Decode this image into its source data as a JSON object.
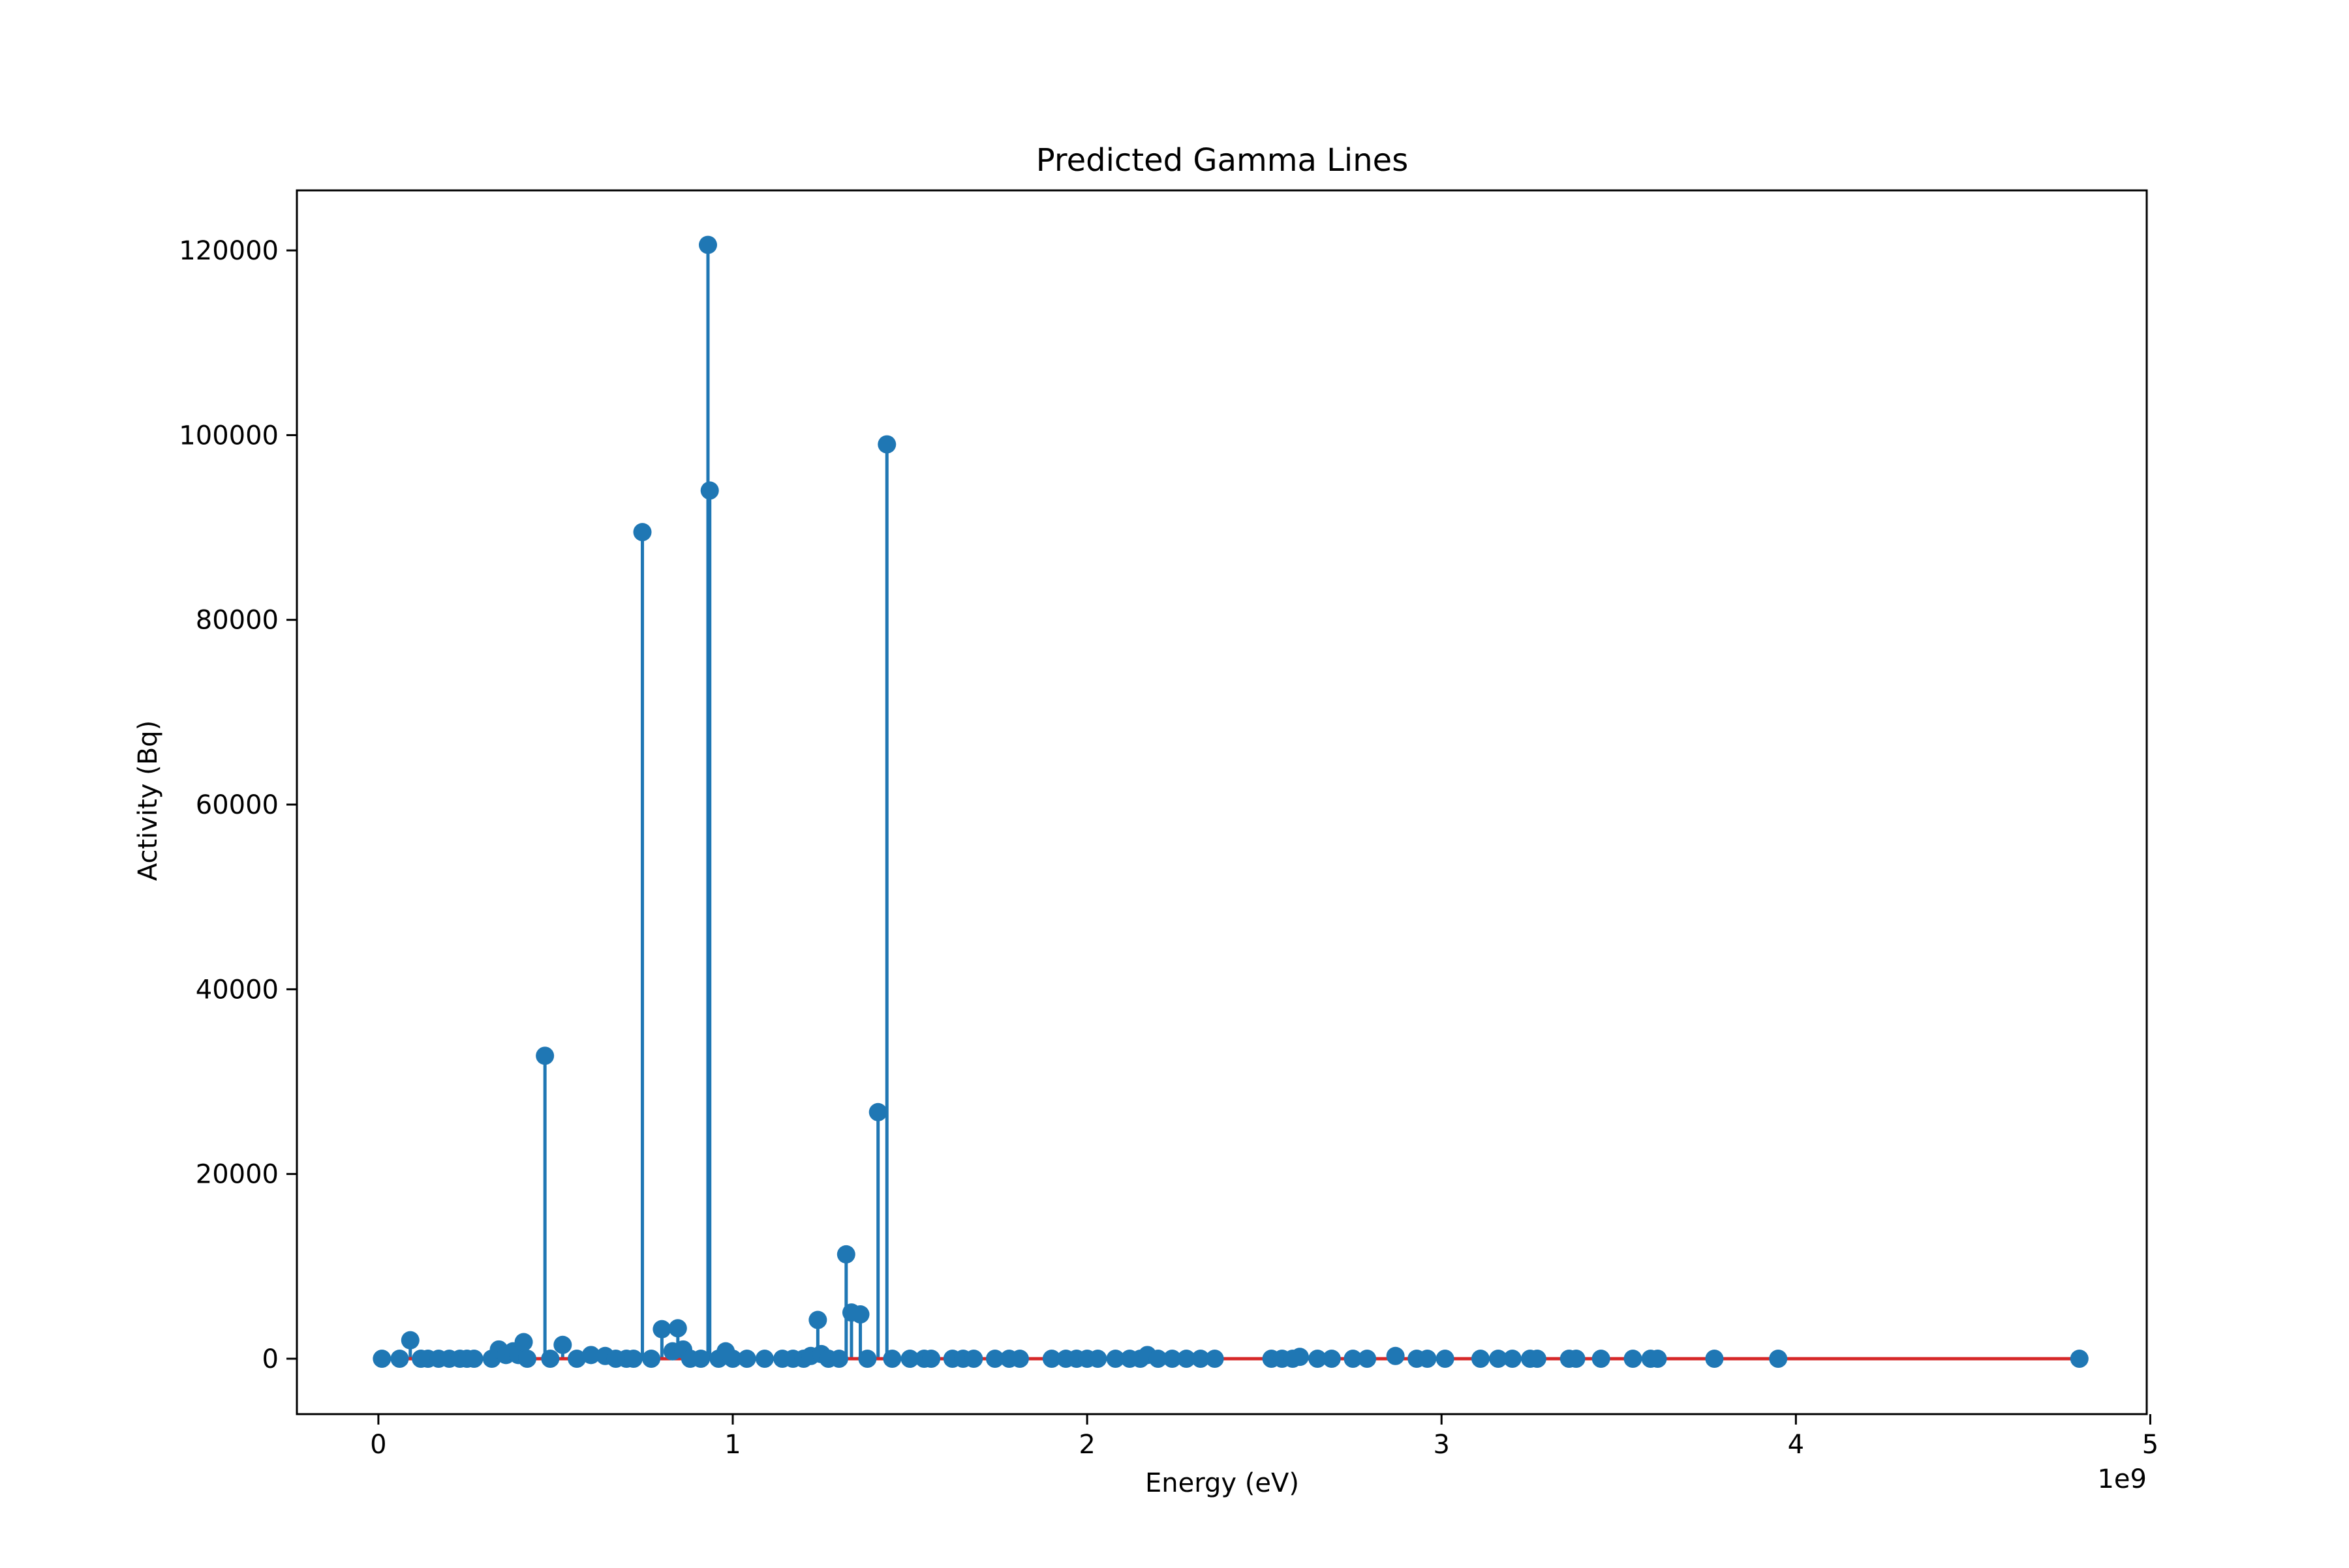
{
  "chart_data": {
    "type": "stem",
    "title": "Predicted Gamma Lines",
    "xlabel": "Energy (eV)",
    "ylabel": "Activity (Bq)",
    "x_offset_label": "1e9",
    "xlim": [
      -230000000,
      4990000000
    ],
    "ylim": [
      -6000,
      126500
    ],
    "xticks": [
      0,
      1000000000,
      2000000000,
      3000000000,
      4000000000,
      5000000000
    ],
    "xtick_labels": [
      "0",
      "1",
      "2",
      "3",
      "4",
      "5"
    ],
    "yticks": [
      0,
      20000,
      40000,
      60000,
      80000,
      100000,
      120000
    ],
    "ytick_labels": [
      "0",
      "20000",
      "40000",
      "60000",
      "80000",
      "100000",
      "120000"
    ],
    "grid": false,
    "colors": {
      "stem": "#1f77b4",
      "baseline": "#d62728",
      "axes": "#000000"
    },
    "series": [
      {
        "points": [
          [
            10000000,
            0
          ],
          [
            60000000,
            0
          ],
          [
            90000000,
            2000
          ],
          [
            120000000,
            0
          ],
          [
            140000000,
            0
          ],
          [
            170000000,
            0
          ],
          [
            200000000,
            0
          ],
          [
            230000000,
            0
          ],
          [
            250000000,
            0
          ],
          [
            270000000,
            0
          ],
          [
            320000000,
            0
          ],
          [
            340000000,
            1000
          ],
          [
            360000000,
            400
          ],
          [
            380000000,
            800
          ],
          [
            395000000,
            400
          ],
          [
            410000000,
            1800
          ],
          [
            420000000,
            0
          ],
          [
            470000000,
            32800
          ],
          [
            485000000,
            0
          ],
          [
            520000000,
            1500
          ],
          [
            560000000,
            0
          ],
          [
            600000000,
            400
          ],
          [
            640000000,
            300
          ],
          [
            670000000,
            0
          ],
          [
            700000000,
            0
          ],
          [
            720000000,
            0
          ],
          [
            745000000,
            89500
          ],
          [
            770000000,
            0
          ],
          [
            800000000,
            3200
          ],
          [
            830000000,
            800
          ],
          [
            845000000,
            3300
          ],
          [
            860000000,
            1000
          ],
          [
            880000000,
            0
          ],
          [
            910000000,
            0
          ],
          [
            930000000,
            120600
          ],
          [
            935000000,
            94000
          ],
          [
            960000000,
            0
          ],
          [
            980000000,
            800
          ],
          [
            1000000000,
            0
          ],
          [
            1040000000,
            0
          ],
          [
            1090000000,
            0
          ],
          [
            1140000000,
            0
          ],
          [
            1170000000,
            0
          ],
          [
            1200000000,
            0
          ],
          [
            1220000000,
            300
          ],
          [
            1240000000,
            4200
          ],
          [
            1250000000,
            500
          ],
          [
            1270000000,
            0
          ],
          [
            1300000000,
            0
          ],
          [
            1320000000,
            11300
          ],
          [
            1335000000,
            5000
          ],
          [
            1360000000,
            4800
          ],
          [
            1380000000,
            0
          ],
          [
            1410000000,
            26700
          ],
          [
            1435000000,
            99000
          ],
          [
            1450000000,
            0
          ],
          [
            1500000000,
            0
          ],
          [
            1540000000,
            0
          ],
          [
            1560000000,
            0
          ],
          [
            1620000000,
            0
          ],
          [
            1650000000,
            0
          ],
          [
            1680000000,
            0
          ],
          [
            1740000000,
            0
          ],
          [
            1780000000,
            0
          ],
          [
            1810000000,
            0
          ],
          [
            1900000000,
            0
          ],
          [
            1940000000,
            0
          ],
          [
            1970000000,
            0
          ],
          [
            2000000000,
            0
          ],
          [
            2030000000,
            0
          ],
          [
            2080000000,
            0
          ],
          [
            2120000000,
            0
          ],
          [
            2150000000,
            0
          ],
          [
            2170000000,
            400
          ],
          [
            2200000000,
            0
          ],
          [
            2240000000,
            0
          ],
          [
            2280000000,
            0
          ],
          [
            2320000000,
            0
          ],
          [
            2360000000,
            0
          ],
          [
            2520000000,
            0
          ],
          [
            2550000000,
            0
          ],
          [
            2580000000,
            0
          ],
          [
            2600000000,
            200
          ],
          [
            2650000000,
            0
          ],
          [
            2690000000,
            0
          ],
          [
            2750000000,
            0
          ],
          [
            2790000000,
            0
          ],
          [
            2870000000,
            300
          ],
          [
            2930000000,
            0
          ],
          [
            2960000000,
            0
          ],
          [
            3010000000,
            0
          ],
          [
            3110000000,
            0
          ],
          [
            3160000000,
            0
          ],
          [
            3200000000,
            0
          ],
          [
            3250000000,
            0
          ],
          [
            3270000000,
            0
          ],
          [
            3360000000,
            0
          ],
          [
            3380000000,
            0
          ],
          [
            3450000000,
            0
          ],
          [
            3540000000,
            0
          ],
          [
            3590000000,
            0
          ],
          [
            3610000000,
            0
          ],
          [
            3770000000,
            0
          ],
          [
            3950000000,
            0
          ],
          [
            4800000000,
            0
          ]
        ]
      }
    ]
  }
}
